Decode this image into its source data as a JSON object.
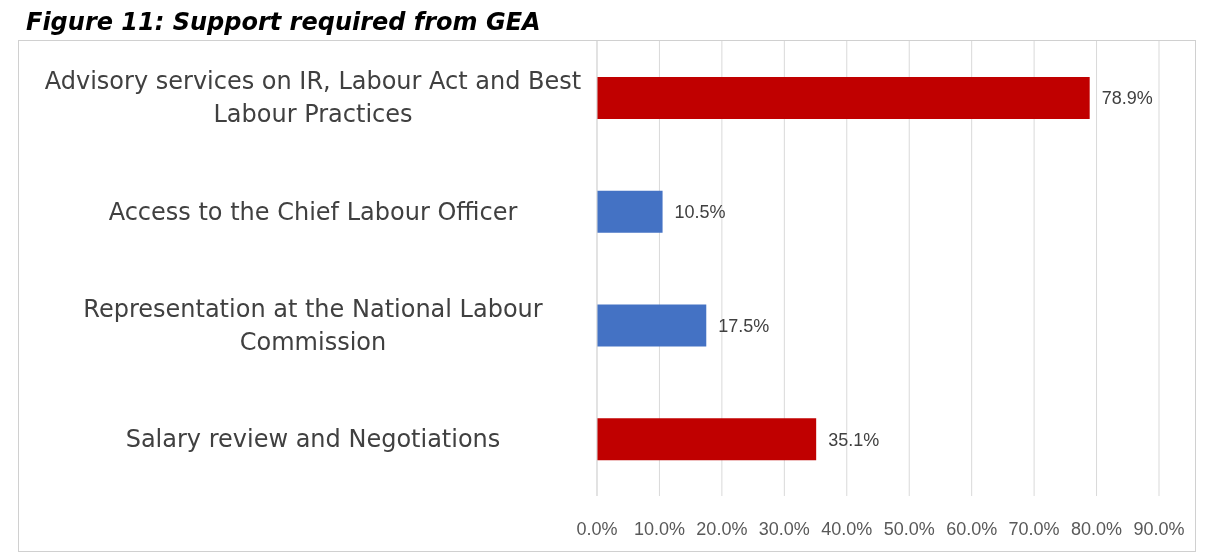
{
  "chart_data": {
    "type": "bar",
    "orientation": "horizontal",
    "title": "Figure 11: Support required from GEA",
    "categories": [
      "Advisory services on IR, Labour Act and Best Labour Practices",
      "Access to the Chief Labour Officer",
      "Representation at the National Labour Commission",
      "Salary review and Negotiations"
    ],
    "values": [
      78.9,
      10.5,
      17.5,
      35.1
    ],
    "colors": [
      "#c00000",
      "#4472c4",
      "#4472c4",
      "#c00000"
    ],
    "value_labels": [
      "78.9%",
      "10.5%",
      "17.5%",
      "35.1%"
    ],
    "xlim": [
      0,
      90
    ],
    "xticks": [
      {
        "value": 0,
        "label": "0.0%"
      },
      {
        "value": 10,
        "label": "10.0%"
      },
      {
        "value": 20,
        "label": "20.0%"
      },
      {
        "value": 30,
        "label": "30.0%"
      },
      {
        "value": 40,
        "label": "40.0%"
      },
      {
        "value": 50,
        "label": "50.0%"
      },
      {
        "value": 60,
        "label": "60.0%"
      },
      {
        "value": 70,
        "label": "70.0%"
      },
      {
        "value": 80,
        "label": "80.0%"
      },
      {
        "value": 90,
        "label": "90.0%"
      }
    ],
    "grid": "x"
  }
}
